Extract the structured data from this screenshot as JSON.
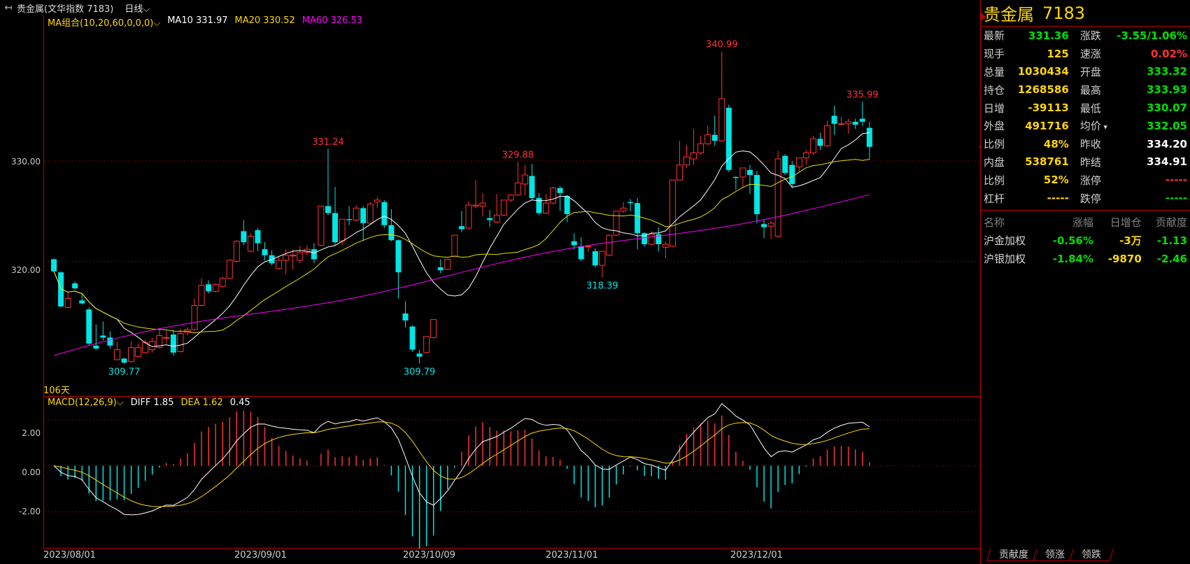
{
  "topbar": {
    "back_icon": "↤",
    "title": "贵金属(文华指数 7183)",
    "period": "日线"
  },
  "main_legend": {
    "ma_group": "MA组合(10,20,60,0,0,0)",
    "ma10": "MA10 331.97",
    "ma20": "MA20 330.52",
    "ma60": "MA60 326.53"
  },
  "macd_legend": {
    "macd": "MACD(12,26,9)",
    "diff": "DIFF 1.85",
    "dea": "DEA 1.62",
    "hist": "0.45"
  },
  "days_label": "106天",
  "colors": {
    "up": "#ff3232",
    "down": "#00e5e5",
    "ma10": "#ffffff",
    "ma20": "#e0e000",
    "ma60": "#ff00ff",
    "grid": "#7a0000",
    "frame": "#c00000",
    "yellow": "#ffd700",
    "green": "#00e000",
    "red": "#ff3232"
  },
  "header": {
    "name": "贵金属",
    "code": "7183"
  },
  "quote": [
    {
      "l1": "最新",
      "v1": "331.36",
      "c1": "green",
      "l2": "涨跌",
      "v2": "-3.55/1.06%",
      "c2": "green"
    },
    {
      "l1": "现手",
      "v1": "125",
      "c1": "yellow",
      "l2": "速涨",
      "v2": "0.02%",
      "c2": "red"
    },
    {
      "l1": "总量",
      "v1": "1030434",
      "c1": "yellow",
      "l2": "开盘",
      "v2": "333.32",
      "c2": "green"
    },
    {
      "l1": "持仓",
      "v1": "1268586",
      "c1": "yellow",
      "l2": "最高",
      "v2": "333.93",
      "c2": "green"
    },
    {
      "l1": "日增",
      "v1": "-39113",
      "c1": "yellow",
      "l2": "最低",
      "v2": "330.07",
      "c2": "green"
    },
    {
      "l1": "外盘",
      "v1": "491716",
      "c1": "yellow",
      "l2": "均价",
      "v2": "332.05",
      "c2": "green"
    },
    {
      "l1": "比例",
      "v1": "48%",
      "c1": "yellow",
      "l2": "昨收",
      "v2": "334.20",
      "c2": "white"
    },
    {
      "l1": "内盘",
      "v1": "538761",
      "c1": "yellow",
      "l2": "昨结",
      "v2": "334.91",
      "c2": "white"
    },
    {
      "l1": "比例",
      "v1": "52%",
      "c1": "yellow",
      "l2": "涨停",
      "v2": "-----",
      "c2": "red"
    },
    {
      "l1": "杠杆",
      "v1": "-----",
      "c1": "yellow",
      "l2": "跌停",
      "v2": "-----",
      "c2": "green"
    }
  ],
  "contrib": {
    "headers": [
      "名称",
      "涨幅",
      "日增仓",
      "贡献度"
    ],
    "rows": [
      {
        "name": "沪金加权",
        "chg": "-0.56%",
        "oi": "-3万",
        "contrib": "-1.13"
      },
      {
        "name": "沪银加权",
        "chg": "-1.84%",
        "oi": "-9870",
        "contrib": "-2.46"
      }
    ]
  },
  "tabs": [
    "贡献度",
    "领涨",
    "领跌"
  ],
  "chart_data": {
    "type": "candlestick",
    "y_ticks": [
      "330.00",
      "320.00"
    ],
    "macd_ticks": [
      "2.00",
      "0.00",
      "-2.00"
    ],
    "x_labels": [
      "2023/08/01",
      "2023/09/01",
      "2023/10/09",
      "2023/11/01",
      "2023/12/01"
    ],
    "annotations": [
      "340.99",
      "335.99",
      "331.24",
      "329.88",
      "318.39",
      "309.77",
      "309.79"
    ],
    "ylim": [
      306.5,
      344.5
    ],
    "macd_ylim": [
      -3.6,
      3.0
    ],
    "ohlc": [
      [
        320.2,
        320.3,
        319.0,
        318.9
      ],
      [
        318.9,
        319.0,
        315.5,
        315.4
      ],
      [
        315.4,
        317.0,
        316.3,
        315.3
      ],
      [
        317.8,
        318.0,
        317.3,
        317.2
      ],
      [
        316.1,
        316.7,
        315.8,
        315.7
      ],
      [
        315.2,
        315.4,
        311.8,
        311.6
      ],
      [
        311.6,
        313.7,
        311.3,
        311.2
      ],
      [
        312.6,
        314.0,
        312.4,
        312.1
      ],
      [
        312.4,
        313.0,
        311.6,
        311.3
      ],
      [
        310.2,
        312.0,
        311.2,
        310.1
      ],
      [
        310.3,
        310.4,
        309.9,
        309.8
      ],
      [
        310.0,
        312.0,
        311.4,
        309.9
      ],
      [
        310.5,
        311.8,
        311.4,
        310.4
      ],
      [
        310.9,
        312.2,
        311.9,
        310.8
      ],
      [
        311.2,
        312.4,
        312.0,
        310.9
      ],
      [
        311.4,
        313.2,
        312.6,
        311.3
      ],
      [
        312.4,
        313.1,
        312.4,
        311.8
      ],
      [
        312.7,
        313.2,
        310.9,
        310.6
      ],
      [
        311.0,
        313.3,
        312.8,
        310.9
      ],
      [
        312.9,
        313.4,
        313.2,
        312.6
      ],
      [
        313.2,
        316.3,
        315.6,
        313.1
      ],
      [
        315.6,
        318.3,
        317.6,
        315.5
      ],
      [
        317.7,
        318.1,
        317.0,
        316.8
      ],
      [
        317.0,
        317.8,
        317.7,
        316.9
      ],
      [
        317.5,
        318.5,
        318.3,
        317.4
      ],
      [
        318.3,
        320.2,
        320.1,
        318.2
      ],
      [
        320.0,
        322.1,
        322.0,
        319.9
      ],
      [
        323.0,
        324.1,
        321.9,
        321.6
      ],
      [
        321.0,
        322.8,
        322.5,
        320.9
      ],
      [
        323.1,
        323.3,
        321.8,
        321.0
      ],
      [
        321.2,
        321.9,
        320.6,
        320.1
      ],
      [
        320.6,
        321.1,
        319.8,
        319.6
      ],
      [
        319.3,
        320.4,
        320.1,
        319.2
      ],
      [
        320.1,
        321.2,
        320.6,
        318.7
      ],
      [
        320.6,
        321.2,
        320.6,
        319.2
      ],
      [
        320.1,
        321.5,
        320.9,
        319.8
      ],
      [
        320.9,
        321.6,
        321.2,
        320.6
      ],
      [
        321.2,
        321.8,
        320.2,
        319.8
      ],
      [
        321.6,
        323.5,
        325.5,
        321.5
      ],
      [
        325.5,
        331.2,
        324.8,
        324.6
      ],
      [
        324.8,
        327.4,
        321.9,
        321.6
      ],
      [
        322.0,
        324.0,
        324.2,
        321.6
      ],
      [
        324.2,
        325.5,
        324.1,
        323.6
      ],
      [
        324.1,
        325.6,
        325.3,
        324.0
      ],
      [
        325.3,
        325.5,
        323.8,
        322.0
      ],
      [
        323.8,
        325.9,
        325.7,
        323.7
      ],
      [
        325.9,
        326.4,
        326.1,
        325.3
      ],
      [
        325.9,
        326.1,
        323.6,
        323.3
      ],
      [
        323.6,
        325.2,
        322.1,
        322.0
      ],
      [
        322.1,
        322.2,
        318.9,
        316.3
      ],
      [
        314.8,
        316.0,
        314.1,
        313.4
      ],
      [
        313.5,
        313.6,
        311.2,
        311.0
      ],
      [
        310.8,
        311.2,
        310.5,
        309.8
      ],
      [
        310.9,
        312.1,
        312.5,
        310.8
      ],
      [
        312.4,
        313.5,
        314.2,
        312.3
      ],
      [
        319.4,
        320.2,
        319.1,
        318.8
      ],
      [
        319.2,
        320.2,
        320.2,
        319.1
      ],
      [
        320.5,
        322.6,
        322.6,
        320.4
      ],
      [
        323.5,
        325.0,
        323.2,
        322.9
      ],
      [
        323.3,
        326.0,
        325.6,
        323.2
      ],
      [
        325.5,
        328.1,
        325.6,
        325.3
      ],
      [
        325.5,
        326.8,
        325.8,
        324.5
      ],
      [
        324.3,
        325.1,
        324.1,
        323.4
      ],
      [
        323.9,
        326.7,
        324.6,
        323.8
      ],
      [
        324.6,
        326.1,
        326.1,
        324.5
      ],
      [
        326.1,
        326.7,
        326.6,
        325.9
      ],
      [
        326.6,
        329.9,
        327.8,
        326.5
      ],
      [
        327.7,
        329.6,
        328.6,
        326.6
      ],
      [
        328.5,
        329.7,
        326.3,
        326.1
      ],
      [
        326.3,
        326.8,
        324.8,
        324.6
      ],
      [
        324.8,
        326.7,
        325.8,
        324.7
      ],
      [
        325.8,
        327.4,
        327.3,
        325.7
      ],
      [
        327.3,
        327.5,
        326.8,
        325.0
      ],
      [
        326.5,
        326.6,
        324.7,
        323.9
      ],
      [
        322.0,
        322.8,
        321.6,
        321.2
      ],
      [
        321.5,
        322.4,
        320.2,
        320.0
      ],
      [
        321.5,
        321.6,
        321.5,
        320.9
      ],
      [
        321.0,
        321.3,
        319.6,
        319.4
      ],
      [
        319.6,
        320.6,
        321.0,
        318.4
      ],
      [
        320.6,
        322.7,
        322.6,
        320.5
      ],
      [
        322.6,
        324.8,
        325.0,
        322.5
      ],
      [
        325.0,
        325.9,
        325.3,
        324.8
      ],
      [
        325.9,
        326.2,
        325.8,
        325.0
      ],
      [
        325.8,
        326.3,
        322.8,
        321.2
      ],
      [
        322.8,
        322.9,
        321.7,
        321.5
      ],
      [
        321.7,
        323.0,
        322.7,
        321.6
      ],
      [
        322.7,
        323.4,
        321.7,
        321.0
      ],
      [
        321.4,
        322.0,
        321.7,
        320.3
      ],
      [
        321.5,
        327.6,
        328.1,
        321.4
      ],
      [
        328.1,
        332.0,
        329.6,
        329.5
      ],
      [
        329.6,
        331.6,
        330.4,
        329.3
      ],
      [
        330.2,
        333.2,
        330.8,
        329.6
      ],
      [
        330.8,
        332.5,
        331.7,
        330.6
      ],
      [
        331.7,
        333.5,
        332.6,
        331.6
      ],
      [
        332.6,
        334.5,
        332.0,
        331.5
      ],
      [
        332.0,
        340.9,
        336.2,
        331.9
      ],
      [
        335.3,
        335.6,
        329.1,
        328.9
      ],
      [
        328.4,
        328.5,
        328.3,
        327.1
      ],
      [
        328.4,
        329.3,
        329.3,
        327.3
      ],
      [
        329.1,
        329.6,
        328.6,
        326.7
      ],
      [
        328.6,
        329.0,
        324.7,
        323.8
      ],
      [
        323.7,
        324.1,
        323.4,
        322.3
      ],
      [
        323.5,
        324.0,
        323.8,
        322.2
      ],
      [
        322.5,
        331.0,
        330.2,
        322.4
      ],
      [
        330.5,
        330.7,
        328.8,
        328.6
      ],
      [
        329.6,
        330.0,
        327.7,
        327.3
      ],
      [
        329.4,
        329.8,
        330.3,
        328.9
      ],
      [
        330.3,
        331.1,
        330.8,
        329.6
      ],
      [
        330.8,
        332.5,
        332.2,
        330.6
      ],
      [
        332.2,
        332.8,
        331.5,
        331.1
      ],
      [
        331.5,
        334.0,
        333.5,
        331.4
      ],
      [
        334.5,
        335.5,
        333.7,
        332.6
      ],
      [
        333.7,
        334.4,
        333.7,
        333.6
      ],
      [
        333.7,
        334.2,
        333.9,
        332.7
      ],
      [
        333.9,
        334.2,
        333.6,
        333.2
      ],
      [
        334.2,
        335.9,
        333.9,
        333.5
      ],
      [
        333.3,
        333.9,
        331.4,
        330.1
      ]
    ],
    "ma10": [],
    "macd_diff": [],
    "macd_dea": [],
    "macd_hist": []
  }
}
